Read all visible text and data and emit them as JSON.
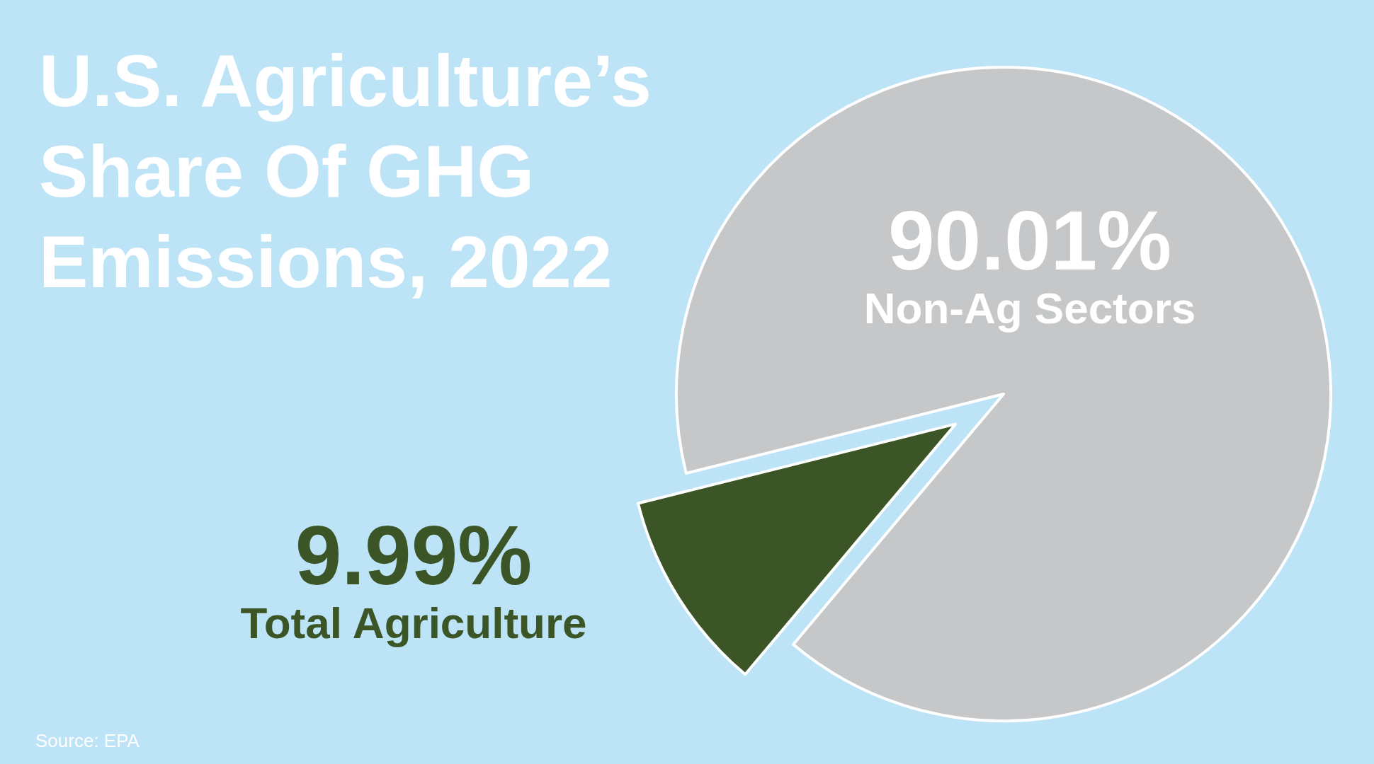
{
  "chart_data": {
    "type": "pie",
    "title": "U.S. Agriculture’s Share Of GHG Emissions, 2022",
    "categories": [
      "Total Agriculture",
      "Non-Ag Sectors"
    ],
    "values": [
      9.99,
      90.01
    ],
    "value_labels": [
      "9.99%",
      "90.01%"
    ],
    "colors": [
      "#3b5526",
      "#c6c7c9"
    ],
    "legend": false,
    "annotations": [
      "Source: EPA"
    ]
  }
}
